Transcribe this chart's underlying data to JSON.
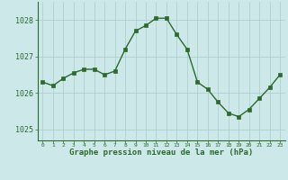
{
  "x": [
    0,
    1,
    2,
    3,
    4,
    5,
    6,
    7,
    8,
    9,
    10,
    11,
    12,
    13,
    14,
    15,
    16,
    17,
    18,
    19,
    20,
    21,
    22,
    23
  ],
  "y": [
    1026.3,
    1026.2,
    1026.4,
    1026.55,
    1026.65,
    1026.65,
    1026.5,
    1026.6,
    1027.2,
    1027.7,
    1027.85,
    1028.05,
    1028.05,
    1027.6,
    1027.2,
    1026.3,
    1026.1,
    1025.75,
    1025.45,
    1025.35,
    1025.55,
    1025.85,
    1026.15,
    1026.5
  ],
  "line_color": "#2d6a2d",
  "marker_color": "#2d6a2d",
  "bg_color": "#cce8e8",
  "plot_bg_color": "#cce8e8",
  "grid_color": "#aacccc",
  "xlabel": "Graphe pression niveau de la mer (hPa)",
  "xlabel_color": "#2d6a2d",
  "tick_color": "#2d6a2d",
  "yticks": [
    1025,
    1026,
    1027,
    1028
  ],
  "ylim": [
    1024.7,
    1028.5
  ],
  "xlim": [
    -0.5,
    23.5
  ],
  "xtick_labels": [
    "0",
    "1",
    "2",
    "3",
    "4",
    "5",
    "6",
    "7",
    "8",
    "9",
    "10",
    "11",
    "12",
    "13",
    "14",
    "15",
    "16",
    "17",
    "18",
    "19",
    "20",
    "21",
    "22",
    "23"
  ]
}
